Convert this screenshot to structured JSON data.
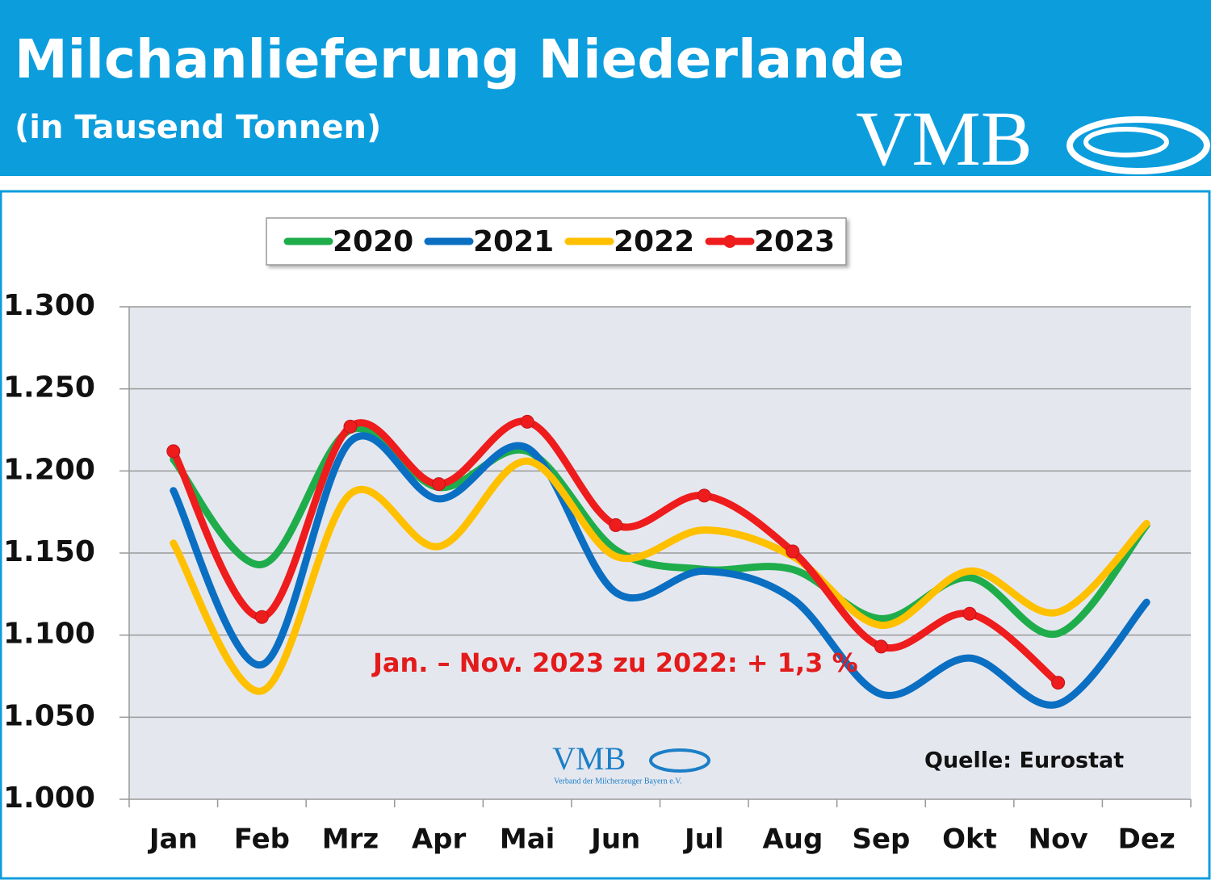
{
  "chart_data": {
    "type": "line",
    "title": "Milchanlieferung Niederlande",
    "subtitle": "(in Tausend Tonnen)",
    "logo": "VMB",
    "logo_caption": "Verband der Milcherzeuger Bayern e.V.",
    "annotation": "Jan. – Nov. 2023 zu 2022: + 1,3 %",
    "source": "Quelle: Eurostat",
    "categories": [
      "Jan",
      "Feb",
      "Mrz",
      "Apr",
      "Mai",
      "Jun",
      "Jul",
      "Aug",
      "Sep",
      "Okt",
      "Nov",
      "Dez"
    ],
    "series": [
      {
        "name": "2020",
        "color": "#1fad4b",
        "values": [
          1207,
          1143,
          1225,
          1190,
          1212,
          1152,
          1140,
          1140,
          1110,
          1135,
          1101,
          1167
        ]
      },
      {
        "name": "2021",
        "color": "#0a6fc2",
        "values": [
          1188,
          1082,
          1218,
          1183,
          1214,
          1126,
          1139,
          1122,
          1064,
          1086,
          1058,
          1120
        ]
      },
      {
        "name": "2022",
        "color": "#ffc000",
        "values": [
          1156,
          1066,
          1186,
          1154,
          1206,
          1148,
          1164,
          1148,
          1106,
          1139,
          1114,
          1168
        ]
      },
      {
        "name": "2023",
        "color": "#ee1c1c",
        "marker": true,
        "values": [
          1212,
          1111,
          1227,
          1192,
          1230,
          1167,
          1185,
          1151,
          1093,
          1113,
          1071,
          null
        ]
      }
    ],
    "ylim": [
      1000,
      1300
    ],
    "yticks": [
      {
        "value": 1000,
        "label": "1.000"
      },
      {
        "value": 1050,
        "label": "1.050"
      },
      {
        "value": 1100,
        "label": "1.100"
      },
      {
        "value": 1150,
        "label": "1.150"
      },
      {
        "value": 1200,
        "label": "1.200"
      },
      {
        "value": 1250,
        "label": "1.250"
      },
      {
        "value": 1300,
        "label": "1.300"
      }
    ],
    "grid": true
  }
}
